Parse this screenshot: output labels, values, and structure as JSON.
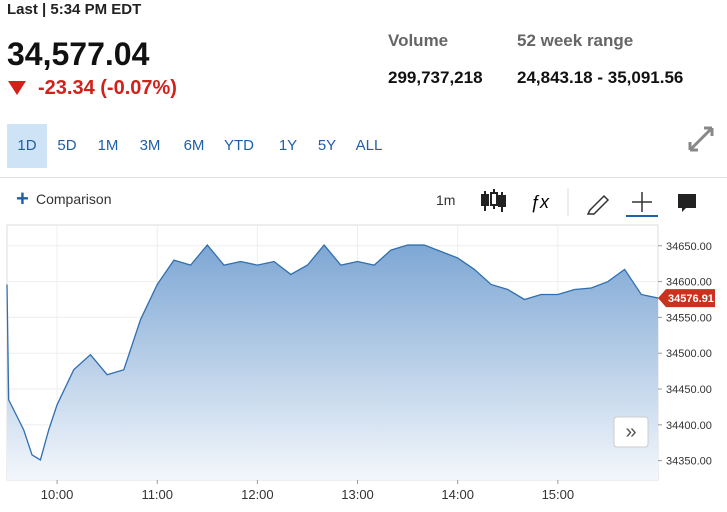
{
  "header": {
    "last_label": "Last | 5:34 PM EDT",
    "price": "34,577.04",
    "change": "-23.34 (-0.07%)"
  },
  "stats": {
    "volume": {
      "label": "Volume",
      "value": "299,737,218"
    },
    "range": {
      "label": "52 week range",
      "value": "24,843.18 - 35,091.56"
    }
  },
  "tabs": [
    "1D",
    "5D",
    "1M",
    "3M",
    "6M",
    "YTD",
    "1Y",
    "5Y",
    "ALL"
  ],
  "toolbar": {
    "comparison": "Comparison",
    "interval": "1m"
  },
  "chart_data": {
    "type": "area",
    "color": "#2f6fb0",
    "grid": true,
    "x": [
      570,
      571,
      580,
      585,
      590,
      595,
      600,
      610,
      620,
      630,
      640,
      650,
      660,
      670,
      680,
      690,
      700,
      710,
      720,
      730,
      740,
      750,
      760,
      770,
      780,
      790,
      800,
      810,
      820,
      830,
      840,
      850,
      860,
      870,
      880,
      890,
      900,
      910,
      920,
      930,
      940,
      950,
      960
    ],
    "values": [
      34596,
      34435,
      34393,
      34358,
      34351,
      34393,
      34428,
      34477,
      34498,
      34470,
      34477,
      34547,
      34596,
      34630,
      34623,
      34651,
      34623,
      34628,
      34623,
      34628,
      34610,
      34623,
      34651,
      34623,
      34628,
      34623,
      34644,
      34651,
      34651,
      34642,
      34633,
      34617,
      34596,
      34589,
      34575,
      34582,
      34582,
      34589,
      34591,
      34600,
      34617,
      34582,
      34577
    ],
    "xlim": [
      570,
      960
    ],
    "xticks": [
      {
        "value": 600,
        "label": "10:00"
      },
      {
        "value": 660,
        "label": "11:00"
      },
      {
        "value": 720,
        "label": "12:00"
      },
      {
        "value": 780,
        "label": "13:00"
      },
      {
        "value": 840,
        "label": "14:00"
      },
      {
        "value": 900,
        "label": "15:00"
      }
    ],
    "ylim": [
      34323,
      34679
    ],
    "yticks": [
      {
        "value": 34350,
        "label": "34350.00"
      },
      {
        "value": 34400,
        "label": "34400.00"
      },
      {
        "value": 34450,
        "label": "34450.00"
      },
      {
        "value": 34500,
        "label": "34500.00"
      },
      {
        "value": 34550,
        "label": "34550.00"
      },
      {
        "value": 34600,
        "label": "34600.00"
      },
      {
        "value": 34650,
        "label": "34650.00"
      }
    ],
    "last_value": 34576.91,
    "last_color": "#c8321e"
  }
}
